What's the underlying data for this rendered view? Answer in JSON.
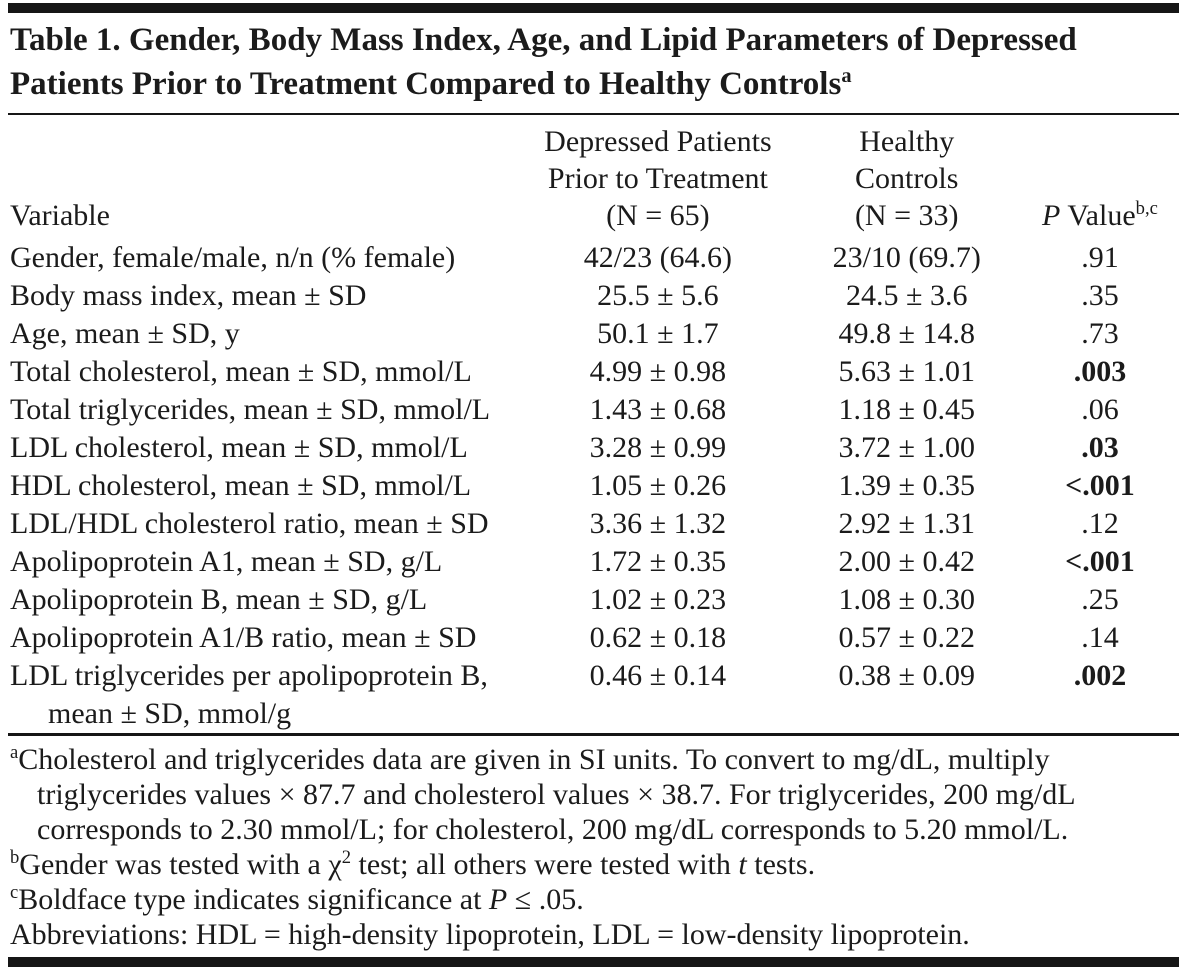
{
  "table": {
    "title": "Table 1. Gender, Body Mass Index, Age, and Lipid Parameters of Depressed Patients Prior to Treatment Compared to Healthy Controls",
    "title_sup": "a",
    "columns": {
      "variable": "Variable",
      "depressed": [
        "Depressed Patients",
        "Prior to Treatment",
        "(N = 65)"
      ],
      "healthy": [
        "Healthy",
        "Controls",
        "(N = 33)"
      ],
      "p": {
        "italic": "P",
        "rest": " Value",
        "sup": "b,c"
      }
    },
    "rows": [
      {
        "variable": "Gender, female/male, n/n (% female)",
        "depressed": "42/23 (64.6)",
        "healthy": "23/10 (69.7)",
        "p": ".91",
        "p_bold": false
      },
      {
        "variable": "Body mass index, mean ± SD",
        "depressed": "25.5 ± 5.6",
        "healthy": "24.5 ± 3.6",
        "p": ".35",
        "p_bold": false
      },
      {
        "variable": "Age, mean ± SD, y",
        "depressed": "50.1 ± 1.7",
        "healthy": "49.8 ± 14.8",
        "p": ".73",
        "p_bold": false
      },
      {
        "variable": "Total cholesterol, mean ± SD, mmol/L",
        "depressed": "4.99 ± 0.98",
        "healthy": "5.63 ± 1.01",
        "p": ".003",
        "p_bold": true
      },
      {
        "variable": "Total triglycerides, mean ± SD, mmol/L",
        "depressed": "1.43 ± 0.68",
        "healthy": "1.18 ± 0.45",
        "p": ".06",
        "p_bold": false
      },
      {
        "variable": "LDL cholesterol, mean ± SD, mmol/L",
        "depressed": "3.28 ± 0.99",
        "healthy": "3.72 ± 1.00",
        "p": ".03",
        "p_bold": true
      },
      {
        "variable": "HDL cholesterol, mean ± SD, mmol/L",
        "depressed": "1.05 ± 0.26",
        "healthy": "1.39 ± 0.35",
        "p": "<.001",
        "p_bold": true
      },
      {
        "variable": "LDL/HDL cholesterol ratio, mean ± SD",
        "depressed": "3.36 ± 1.32",
        "healthy": "2.92 ± 1.31",
        "p": ".12",
        "p_bold": false
      },
      {
        "variable": "Apolipoprotein A1, mean ± SD, g/L",
        "depressed": "1.72 ± 0.35",
        "healthy": "2.00 ± 0.42",
        "p": "<.001",
        "p_bold": true
      },
      {
        "variable": "Apolipoprotein B, mean ± SD, g/L",
        "depressed": "1.02 ± 0.23",
        "healthy": "1.08 ± 0.30",
        "p": ".25",
        "p_bold": false
      },
      {
        "variable": "Apolipoprotein A1/B ratio, mean ± SD",
        "depressed": "0.62 ± 0.18",
        "healthy": "0.57 ± 0.22",
        "p": ".14",
        "p_bold": false
      },
      {
        "variable": "LDL triglycerides per apolipoprotein B,",
        "variable_line2": "mean ± SD, mmol/g",
        "depressed": "0.46 ± 0.14",
        "healthy": "0.38 ± 0.09",
        "p": ".002",
        "p_bold": true
      }
    ],
    "footnotes": {
      "a": {
        "marker": "a",
        "text": "Cholesterol and triglycerides data are given in SI units. To convert to mg/dL, multiply triglycerides values × 87.7 and cholesterol values × 38.7. For triglycerides, 200 mg/dL corresponds to 2.30 mmol/L; for cholesterol, 200 mg/dL corresponds to 5.20 mmol/L."
      },
      "b": {
        "marker": "b",
        "pre": "Gender was tested with a χ",
        "sup": "2",
        "mid": " test; all others were tested with ",
        "italic": "t",
        "post": " tests."
      },
      "c": {
        "marker": "c",
        "pre": "Boldface type indicates significance at ",
        "italic": "P",
        "post": " ≤ .05."
      },
      "abbreviations": "Abbreviations: HDL = high-density lipoprotein, LDL = low-density lipoprotein."
    }
  }
}
